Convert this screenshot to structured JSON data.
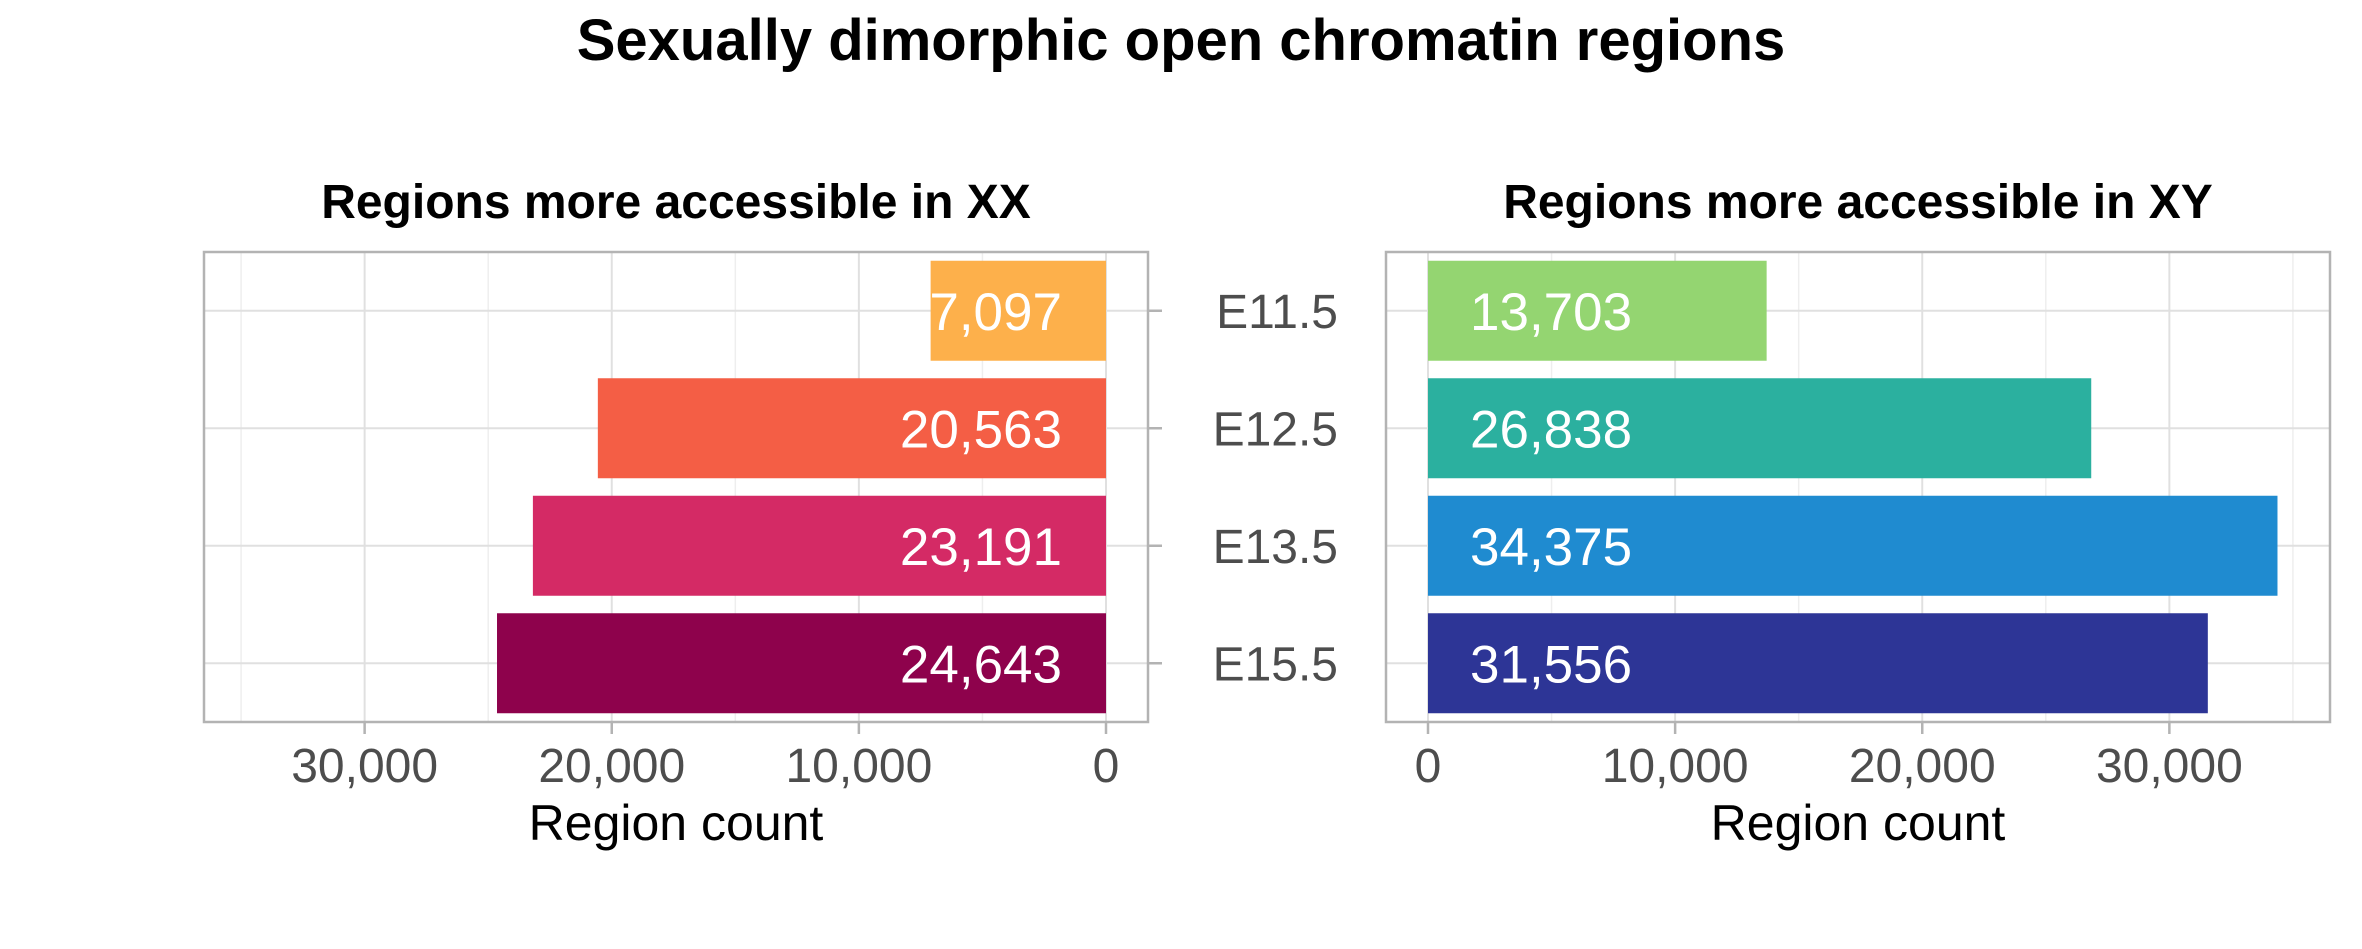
{
  "chart_data": {
    "type": "bar",
    "orientation": "horizontal",
    "title": "Sexually dimorphic open chromatin regions",
    "categories": [
      "E11.5",
      "E12.5",
      "E13.5",
      "E15.5"
    ],
    "panels": [
      {
        "title": "Regions more accessible in XX",
        "direction": "reversed",
        "xlabel": "Region count",
        "xlim": [
          36500,
          0
        ],
        "xticks": [
          30000,
          20000,
          10000,
          0
        ],
        "xtick_labels": [
          "30,000",
          "20,000",
          "10,000",
          "0"
        ],
        "values": [
          7097,
          20563,
          23191,
          24643
        ],
        "labels": [
          "7,097",
          "20,563",
          "23,191",
          "24,643"
        ],
        "colors": [
          "#FDB04B",
          "#F45E45",
          "#D42A65",
          "#8E024C"
        ]
      },
      {
        "title": "Regions more accessible in XY",
        "direction": "normal",
        "xlabel": "Region count",
        "xlim": [
          0,
          36500
        ],
        "xticks": [
          0,
          10000,
          20000,
          30000
        ],
        "xtick_labels": [
          "0",
          "10,000",
          "20,000",
          "30,000"
        ],
        "values": [
          13703,
          26838,
          34375,
          31556
        ],
        "labels": [
          "13,703",
          "26,838",
          "34,375",
          "31,556"
        ],
        "colors": [
          "#94D571",
          "#2BB09F",
          "#1F8BD0",
          "#2D3596"
        ]
      }
    ],
    "grid": true,
    "legend": "none"
  }
}
